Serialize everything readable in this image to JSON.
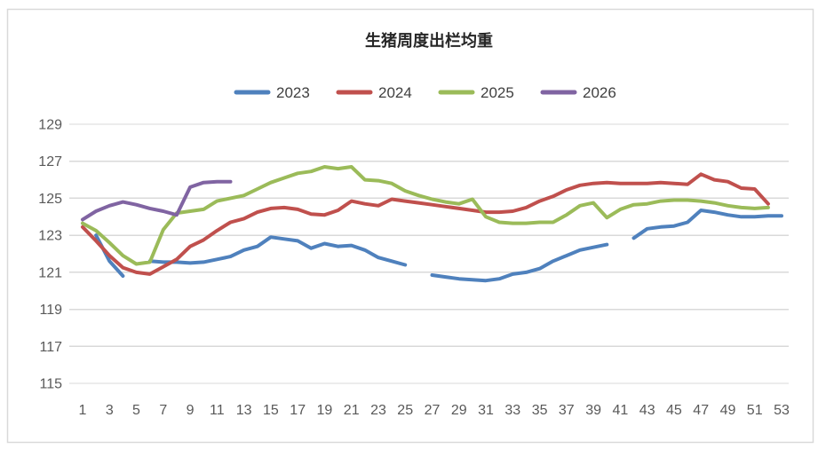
{
  "window": {
    "background": "#ffffff",
    "border_color": "#d9d9d9"
  },
  "chart_data": {
    "type": "line",
    "title": "生猪周度出栏均重",
    "xlabel": "",
    "ylabel": "",
    "x_unit": "week",
    "weeks_total": 53,
    "x_tick_labels": [
      "1",
      "3",
      "5",
      "7",
      "9",
      "11",
      "13",
      "15",
      "17",
      "19",
      "21",
      "23",
      "25",
      "27",
      "29",
      "31",
      "33",
      "35",
      "37",
      "39",
      "41",
      "43",
      "45",
      "47",
      "49",
      "51",
      "53"
    ],
    "ylim": [
      115,
      129
    ],
    "y_tick_step": 2,
    "y_tick_labels": [
      "115",
      "117",
      "119",
      "121",
      "123",
      "125",
      "127",
      "129"
    ],
    "grid": "horizontal",
    "gridline_color": "#d9d9d9",
    "axis_label_color": "#595959",
    "legend_position": "top",
    "series": [
      {
        "name": "2023",
        "color": "#4F81BD",
        "values": [
          null,
          123.0,
          121.6,
          120.8,
          null,
          121.6,
          121.55,
          121.55,
          121.5,
          121.55,
          121.7,
          121.85,
          122.2,
          122.4,
          122.9,
          122.8,
          122.7,
          122.3,
          122.55,
          122.4,
          122.45,
          122.2,
          121.8,
          121.6,
          121.4,
          null,
          120.85,
          120.75,
          120.65,
          120.6,
          120.55,
          120.65,
          120.9,
          121.0,
          121.2,
          121.6,
          121.9,
          122.2,
          122.35,
          122.5,
          null,
          122.85,
          123.35,
          123.45,
          123.5,
          123.7,
          124.35,
          124.25,
          124.1,
          124.0,
          124.0,
          124.05,
          124.05
        ]
      },
      {
        "name": "2024",
        "color": "#C0504D",
        "values": [
          123.45,
          122.7,
          121.9,
          121.25,
          121.0,
          120.9,
          121.3,
          121.7,
          122.4,
          122.75,
          123.25,
          123.7,
          123.9,
          124.25,
          124.45,
          124.5,
          124.4,
          124.15,
          124.1,
          124.35,
          124.85,
          124.7,
          124.6,
          124.95,
          124.85,
          124.75,
          124.65,
          124.55,
          124.45,
          124.35,
          124.25,
          124.25,
          124.3,
          124.5,
          124.85,
          125.1,
          125.45,
          125.7,
          125.8,
          125.85,
          125.8,
          125.8,
          125.8,
          125.85,
          125.8,
          125.75,
          126.3,
          126.0,
          125.9,
          125.55,
          125.5,
          124.7
        ]
      },
      {
        "name": "2025",
        "color": "#9BBB59",
        "values": [
          123.65,
          123.25,
          122.6,
          121.9,
          121.45,
          121.55,
          123.3,
          124.2,
          124.3,
          124.4,
          124.85,
          125.0,
          125.15,
          125.5,
          125.85,
          126.1,
          126.35,
          126.45,
          126.7,
          126.6,
          126.7,
          126.0,
          125.95,
          125.8,
          125.4,
          125.15,
          124.95,
          124.8,
          124.7,
          124.95,
          124.0,
          123.7,
          123.65,
          123.65,
          123.7,
          123.7,
          124.1,
          124.6,
          124.75,
          123.95,
          124.4,
          124.65,
          124.7,
          124.85,
          124.9,
          124.9,
          124.85,
          124.75,
          124.6,
          124.5,
          124.45,
          124.5
        ]
      },
      {
        "name": "2026",
        "color": "#8064A2",
        "values": [
          123.85,
          124.3,
          124.6,
          124.8,
          124.65,
          124.45,
          124.3,
          124.1,
          125.6,
          125.85,
          125.9,
          125.9
        ]
      }
    ]
  }
}
